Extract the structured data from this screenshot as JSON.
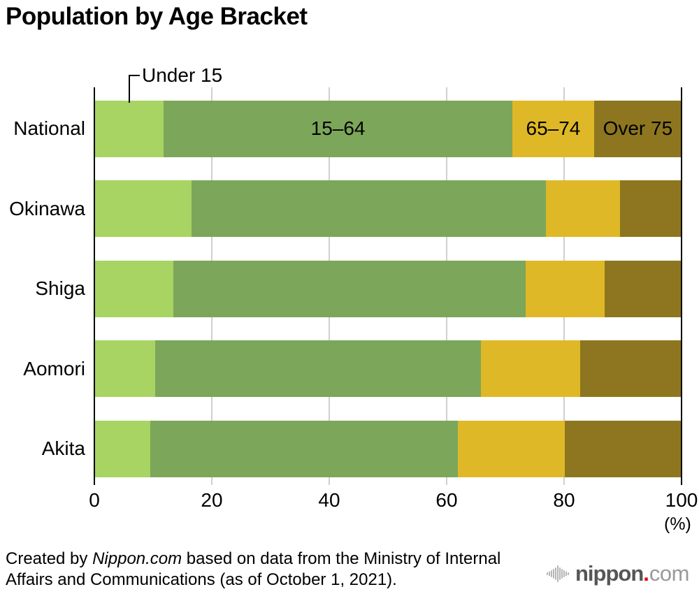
{
  "title": "Population by Age Bracket",
  "chart_data": {
    "type": "bar",
    "orientation": "horizontal",
    "stacked": true,
    "title": "Population by Age Bracket",
    "categories": [
      "National",
      "Okinawa",
      "Shiga",
      "Aomori",
      "Akita"
    ],
    "series": [
      {
        "name": "Under 15",
        "color": "#a7d463",
        "values": [
          11.8,
          16.5,
          13.5,
          10.4,
          9.5
        ]
      },
      {
        "name": "15–64",
        "color": "#7ca65a",
        "values": [
          59.4,
          60.4,
          60.0,
          55.4,
          52.4
        ]
      },
      {
        "name": "65–74",
        "color": "#dfb827",
        "values": [
          13.9,
          12.6,
          13.4,
          16.9,
          18.2
        ]
      },
      {
        "name": "Over 75",
        "color": "#8d761f",
        "values": [
          14.9,
          10.5,
          13.1,
          17.3,
          19.9
        ]
      }
    ],
    "x_ticks": [
      0,
      20,
      40,
      60,
      80,
      100
    ],
    "xlim": [
      0,
      100
    ],
    "grid": true,
    "legend_position": "inline-on-first-bar",
    "axis_unit_label": "(%)",
    "annotation_label": "Under 15",
    "first_row_labels": [
      "",
      "15–64",
      "65–74",
      "Over 75"
    ]
  },
  "footer": {
    "line1_pre": "Created by ",
    "line1_brand": "Nippon.com",
    "line1_post": " based on data from the Ministry of Internal",
    "line2": "Affairs and Communications (as of October 1, 2021)."
  },
  "logo": {
    "name": "nippon",
    "dot": ".",
    "tld": "com"
  },
  "colors": {
    "grid": "#d0d0d0",
    "axis": "#000000",
    "icon_gray": "#b5b5b5",
    "logo_gray": "#565656",
    "logo_light_gray": "#9a9a9a",
    "logo_red": "#e60012"
  }
}
